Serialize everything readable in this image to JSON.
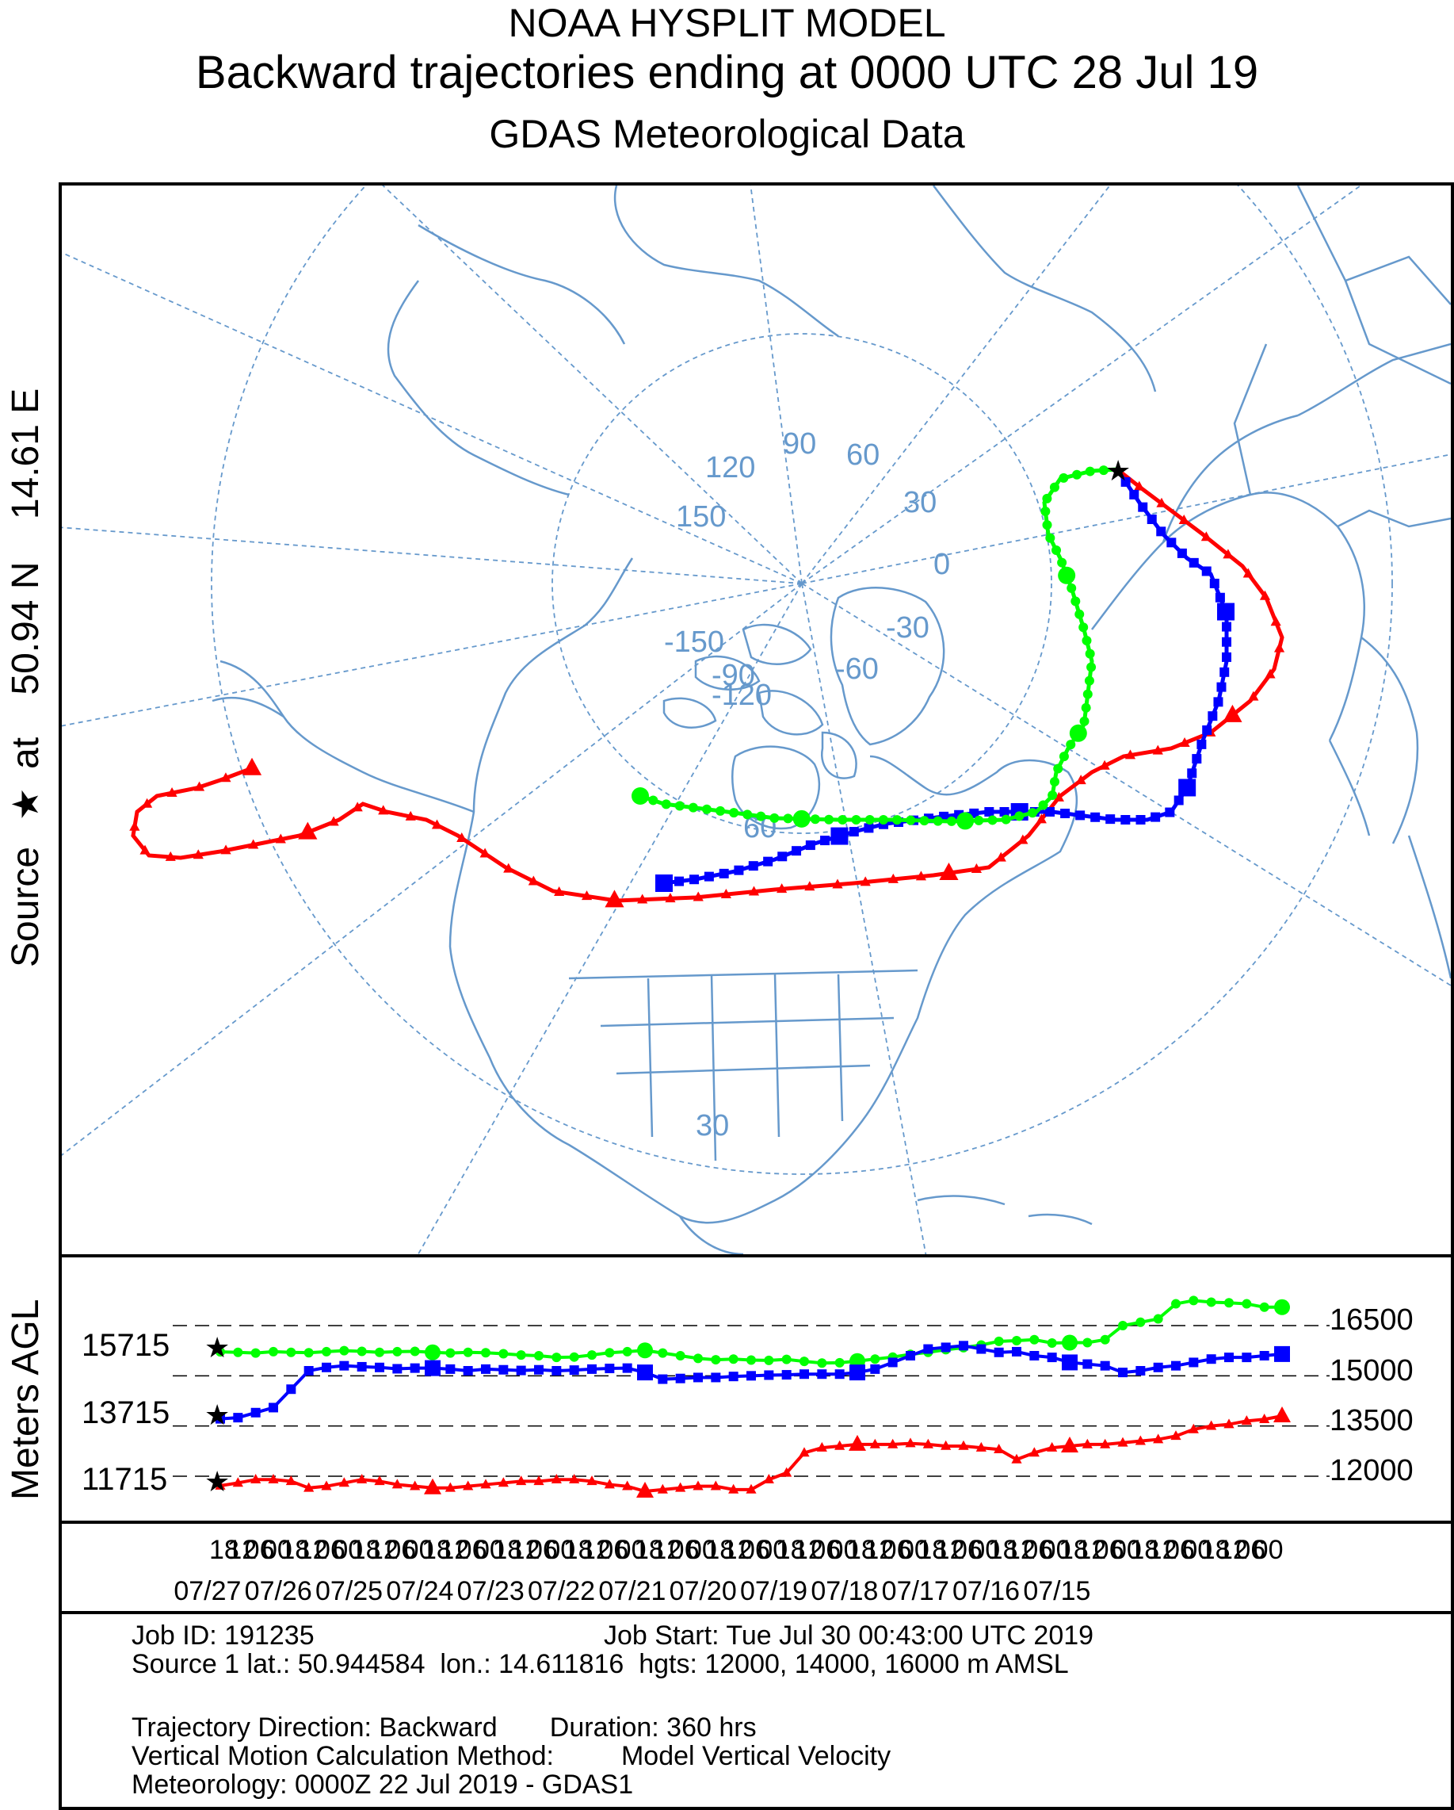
{
  "header": {
    "line1": "NOAA HYSPLIT MODEL",
    "line2": "Backward trajectories ending at 0000 UTC 28 Jul 19",
    "line3": "GDAS Meteorological Data"
  },
  "source_label": {
    "prefix": "Source",
    "star": "★",
    "text": "at    50.94 N    14.61 E"
  },
  "map": {
    "lon_labels": [
      "90",
      "120",
      "60",
      "30",
      "0",
      "-30",
      "-60",
      "-90",
      "-120",
      "-150",
      "150"
    ],
    "lat_labels": [
      "60",
      "30"
    ]
  },
  "vertical": {
    "axis_title": "Meters AGL",
    "start_heights": [
      "15715",
      "13715",
      "11715"
    ],
    "right_ticks": [
      "16500",
      "15000",
      "13500",
      "12000"
    ]
  },
  "time_axis": {
    "hours": [
      "18",
      "12",
      "06",
      "00",
      "18",
      "12",
      "06",
      "00",
      "18",
      "12",
      "06",
      "00",
      "18",
      "12",
      "06",
      "00",
      "18",
      "12",
      "06",
      "00",
      "18",
      "12",
      "06",
      "00",
      "18",
      "12",
      "06",
      "00",
      "18",
      "12",
      "06",
      "00",
      "18",
      "12",
      "06",
      "00",
      "18",
      "12",
      "06",
      "00",
      "18",
      "12",
      "06",
      "00",
      "18",
      "12",
      "06",
      "00",
      "18",
      "12",
      "06",
      "00",
      "18",
      "12",
      "06",
      "00",
      "18",
      "12",
      "06",
      "00"
    ],
    "dates": [
      "07/27",
      "07/26",
      "07/25",
      "07/24",
      "07/23",
      "07/22",
      "07/21",
      "07/20",
      "07/19",
      "07/18",
      "07/17",
      "07/16",
      "07/15"
    ]
  },
  "info": {
    "job_id": "Job ID: 191235",
    "job_start": "Job Start: Tue Jul 30 00:43:00 UTC 2019",
    "source1": "Source 1 lat.: 50.944584  lon.: 14.611816  hgts: 12000, 14000, 16000 m AMSL",
    "direction": "Trajectory Direction: Backward       Duration: 360 hrs",
    "vmotion": "Vertical Motion Calculation Method:         Model Vertical Velocity",
    "meteorology": "Meteorology: 0000Z 22 Jul 2019 - GDAS1"
  },
  "colors": {
    "map_lines": "#6699cc",
    "red": "#ff0000",
    "blue": "#0000ff",
    "green": "#00ff00"
  },
  "chart_data": {
    "type": "line",
    "x_hours_back": [
      0,
      6,
      12,
      18,
      24,
      30,
      36,
      42,
      48,
      54,
      60,
      66,
      72,
      78,
      84,
      90,
      96,
      102,
      108,
      114,
      120,
      126,
      132,
      138,
      144,
      150,
      156,
      162,
      168,
      174,
      180,
      186,
      192,
      198,
      204,
      210,
      216,
      222,
      228,
      234,
      240,
      246,
      252,
      258,
      264,
      270,
      276,
      282,
      288,
      294,
      300,
      306,
      312,
      318,
      324,
      330,
      336,
      342,
      348,
      354,
      360
    ],
    "series": [
      {
        "color": "#00ff00",
        "marker": "circle",
        "start_height": 16000,
        "values": [
          15715,
          15700,
          15680,
          15720,
          15700,
          15690,
          15720,
          15750,
          15730,
          15700,
          15720,
          15730,
          15700,
          15680,
          15700,
          15690,
          15660,
          15620,
          15600,
          15550,
          15560,
          15620,
          15690,
          15720,
          15760,
          15680,
          15600,
          15520,
          15480,
          15500,
          15470,
          15460,
          15490,
          15430,
          15380,
          15390,
          15440,
          15500,
          15560,
          15640,
          15700,
          15780,
          15840,
          15920,
          16030,
          16050,
          16080,
          15980,
          15990,
          15990,
          16080,
          16500,
          16600,
          16700,
          17150,
          17250,
          17200,
          17180,
          17150,
          17050,
          17050
        ]
      },
      {
        "color": "#0000ff",
        "marker": "square",
        "start_height": 14000,
        "values": [
          13715,
          13750,
          13900,
          14050,
          14600,
          15150,
          15250,
          15300,
          15270,
          15250,
          15210,
          15230,
          15230,
          15200,
          15150,
          15200,
          15180,
          15160,
          15180,
          15150,
          15170,
          15200,
          15220,
          15230,
          15100,
          14900,
          14920,
          14950,
          14950,
          14980,
          15000,
          15020,
          15030,
          15050,
          15050,
          15050,
          15100,
          15200,
          15400,
          15600,
          15800,
          15850,
          15900,
          15800,
          15700,
          15720,
          15600,
          15550,
          15400,
          15350,
          15300,
          15100,
          15150,
          15250,
          15300,
          15400,
          15500,
          15550,
          15550,
          15600,
          15650
        ]
      },
      {
        "color": "#ff0000",
        "marker": "triangle",
        "start_height": 12000,
        "values": [
          11715,
          11800,
          11900,
          11900,
          11850,
          11650,
          11700,
          11800,
          11900,
          11850,
          11750,
          11700,
          11650,
          11650,
          11700,
          11750,
          11800,
          11850,
          11850,
          11900,
          11900,
          11850,
          11750,
          11700,
          11550,
          11600,
          11650,
          11700,
          11700,
          11600,
          11600,
          11900,
          12100,
          12700,
          12850,
          12900,
          12950,
          12950,
          12950,
          12980,
          12950,
          12900,
          12900,
          12850,
          12800,
          12500,
          12700,
          12850,
          12900,
          12950,
          12950,
          13000,
          13050,
          13100,
          13200,
          13400,
          13500,
          13550,
          13650,
          13700,
          13800
        ]
      }
    ],
    "y_ticks": [
      12000,
      13500,
      15000,
      16500
    ]
  }
}
